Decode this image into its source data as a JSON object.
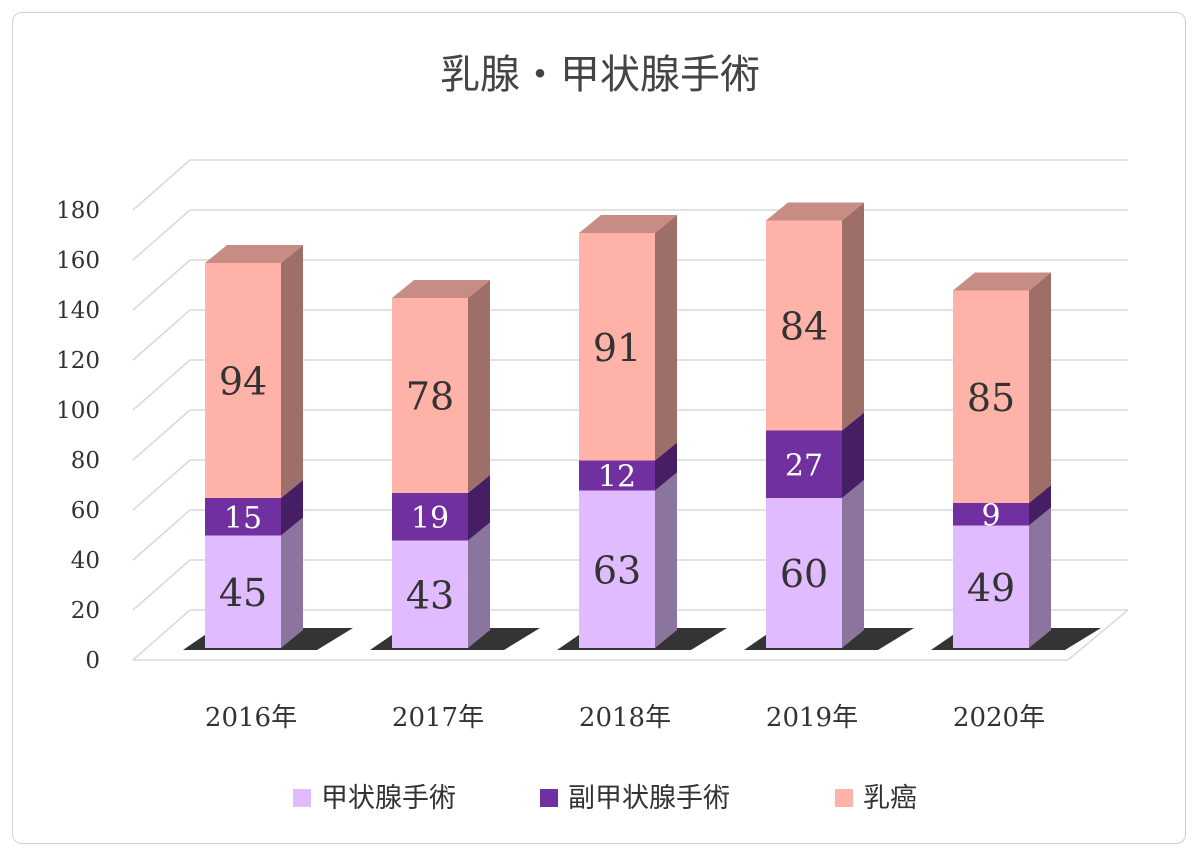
{
  "chart_data": {
    "type": "bar",
    "stacked": true,
    "title": "乳腺・甲状腺手術",
    "categories": [
      "2016年",
      "2017年",
      "2018年",
      "2019年",
      "2020年"
    ],
    "series": [
      {
        "name": "甲状腺手術",
        "values": [
          45,
          43,
          63,
          60,
          49
        ],
        "color": "#E0BBFF"
      },
      {
        "name": "副甲状腺手術",
        "values": [
          15,
          19,
          12,
          27,
          9
        ],
        "color": "#7030A0"
      },
      {
        "name": "乳癌",
        "values": [
          94,
          78,
          91,
          84,
          85
        ],
        "color": "#FFB3A8"
      }
    ],
    "ylim": [
      0,
      180
    ],
    "yticks": [
      0,
      20,
      40,
      60,
      80,
      100,
      120,
      140,
      160,
      180
    ],
    "grid": true,
    "legend": "bottom",
    "style": "3d-column"
  }
}
